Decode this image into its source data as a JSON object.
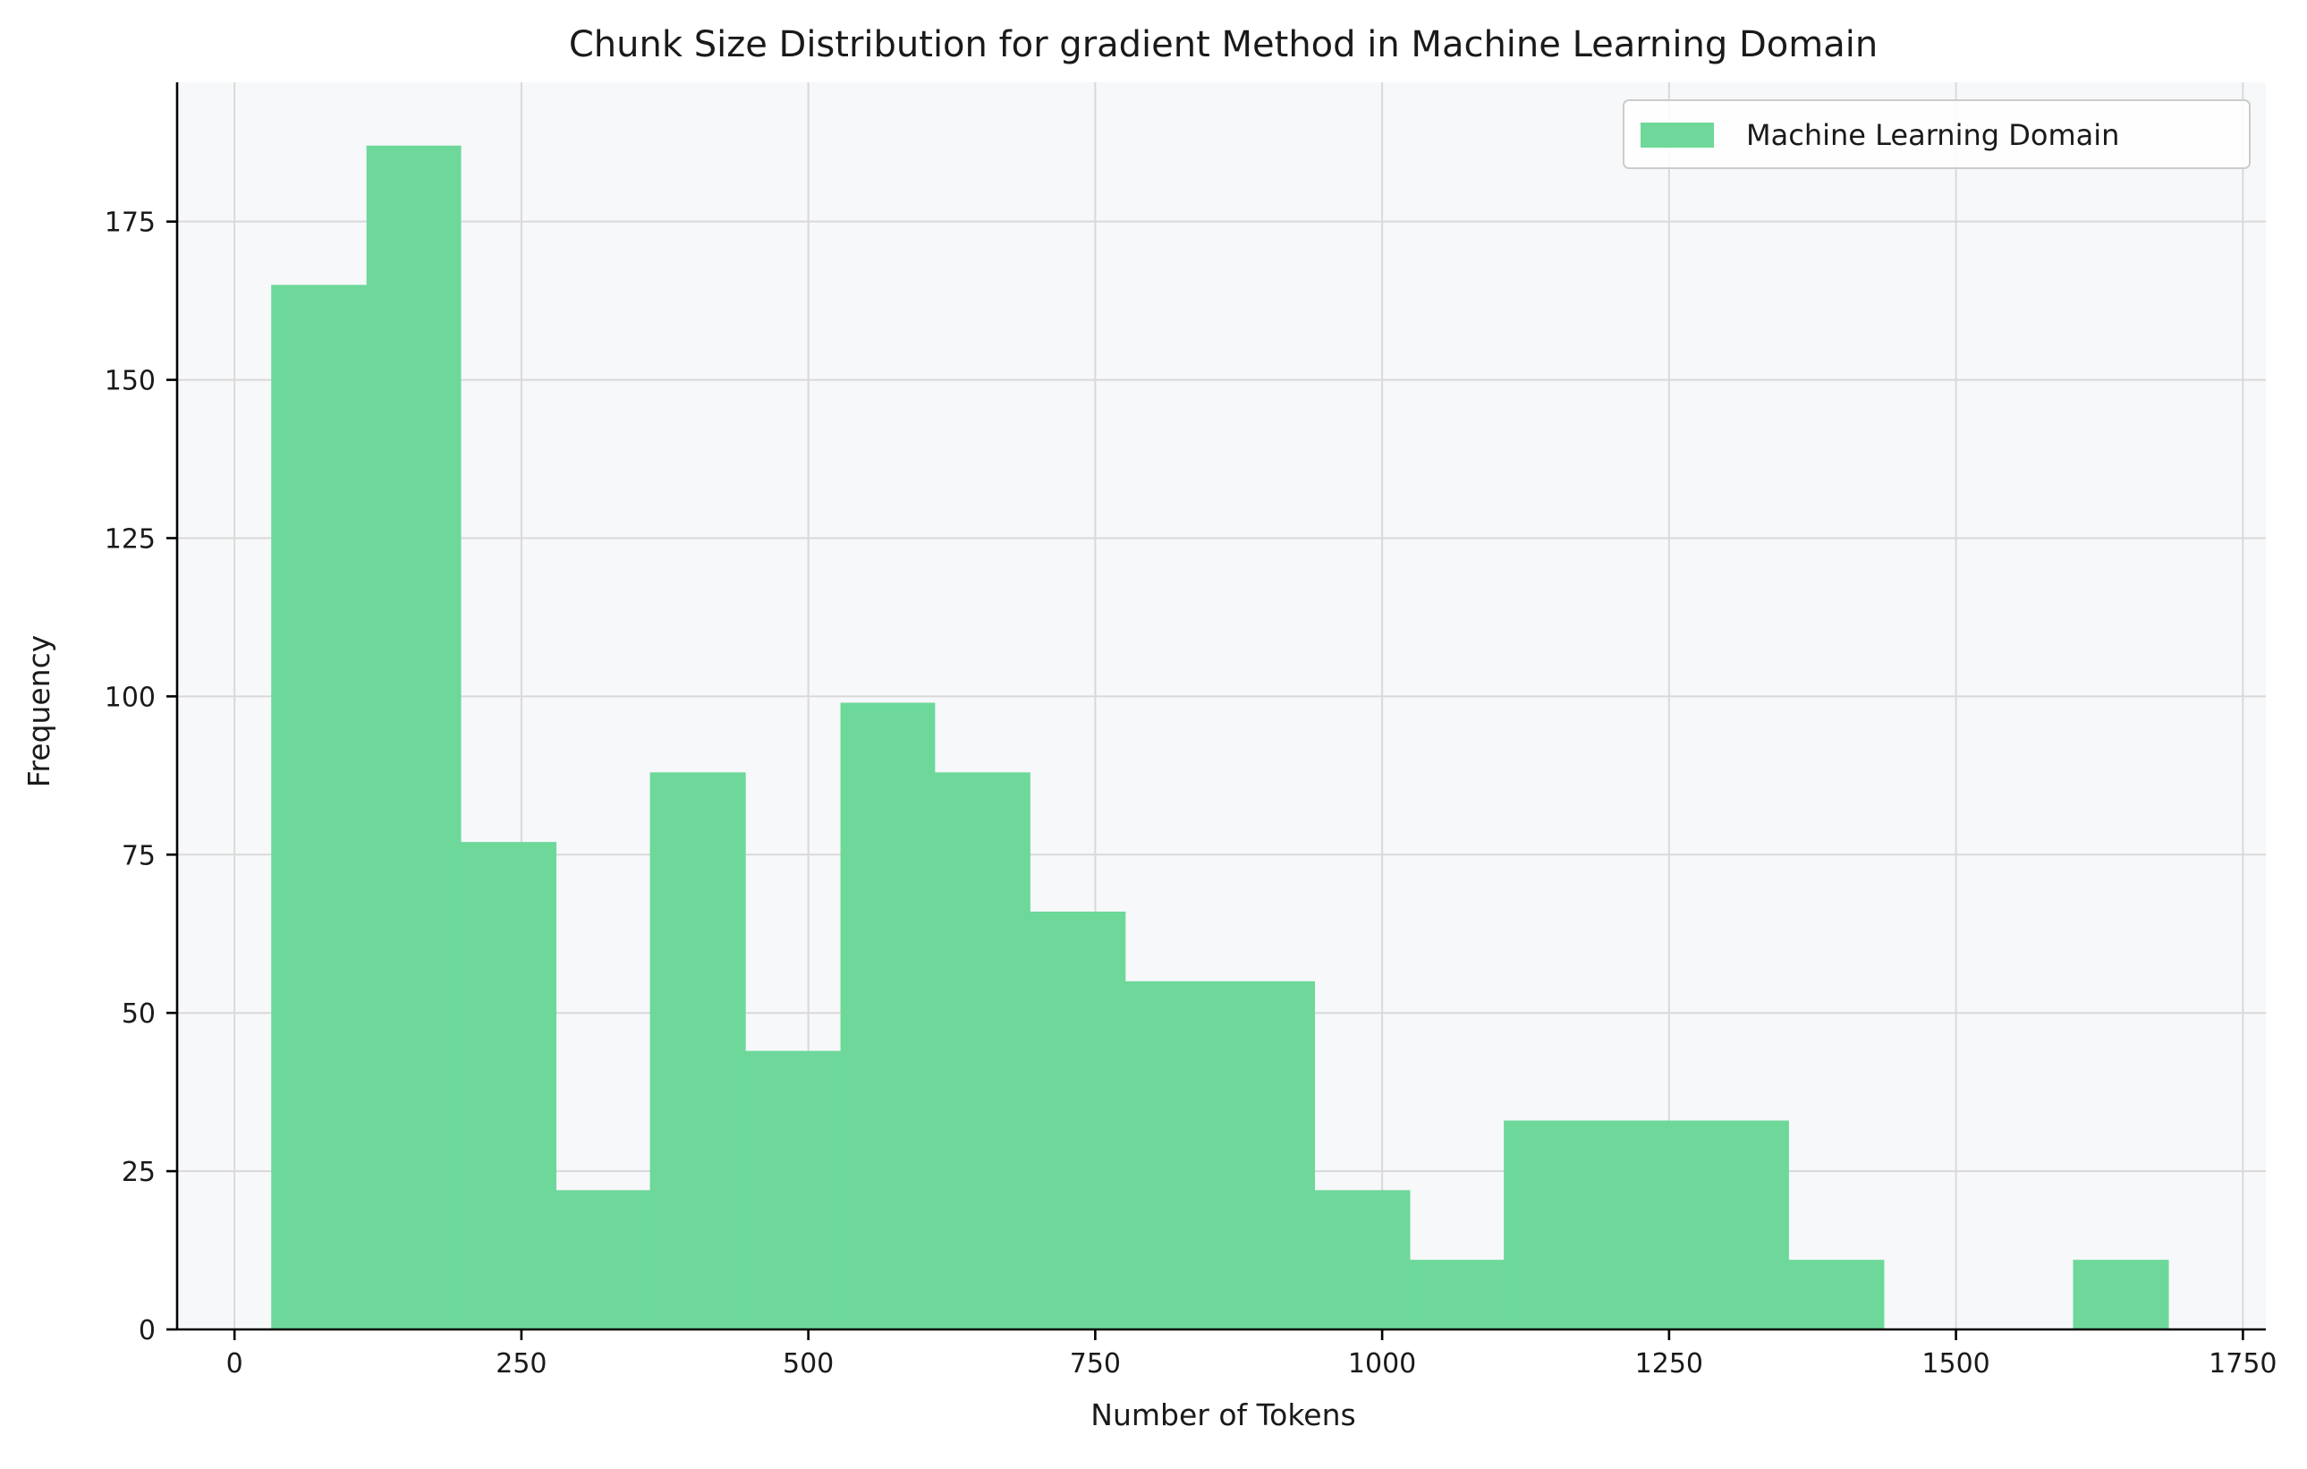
{
  "chart_data": {
    "type": "bar",
    "title": "Chunk Size Distribution for gradient Method in Machine Learning Domain",
    "xlabel": "Number of Tokens",
    "ylabel": "Frequency",
    "xlim": [
      -50,
      1770
    ],
    "ylim": [
      0,
      197
    ],
    "x_ticks": [
      0,
      250,
      500,
      750,
      1000,
      1250,
      1500,
      1750
    ],
    "y_ticks": [
      0,
      25,
      50,
      75,
      100,
      125,
      150,
      175
    ],
    "grid": true,
    "legend": {
      "position": "top-right",
      "entries": [
        "Machine Learning Domain"
      ]
    },
    "colors": {
      "bar": "#6dd89a",
      "plot_background": "#f7f8fa",
      "grid": "#d9d9d9"
    },
    "series": [
      {
        "name": "Machine Learning Domain",
        "bins": [
          {
            "start": 32,
            "end": 115,
            "count": 165
          },
          {
            "start": 115,
            "end": 197,
            "count": 187
          },
          {
            "start": 197,
            "end": 280,
            "count": 77
          },
          {
            "start": 280,
            "end": 362,
            "count": 22
          },
          {
            "start": 362,
            "end": 445,
            "count": 88
          },
          {
            "start": 445,
            "end": 528,
            "count": 44
          },
          {
            "start": 528,
            "end": 610,
            "count": 99
          },
          {
            "start": 610,
            "end": 693,
            "count": 88
          },
          {
            "start": 693,
            "end": 776,
            "count": 66
          },
          {
            "start": 776,
            "end": 858,
            "count": 55
          },
          {
            "start": 858,
            "end": 941,
            "count": 55
          },
          {
            "start": 941,
            "end": 1024,
            "count": 22
          },
          {
            "start": 1024,
            "end": 1106,
            "count": 11
          },
          {
            "start": 1106,
            "end": 1189,
            "count": 33
          },
          {
            "start": 1189,
            "end": 1272,
            "count": 33
          },
          {
            "start": 1272,
            "end": 1354,
            "count": 33
          },
          {
            "start": 1354,
            "end": 1437,
            "count": 11
          },
          {
            "start": 1437,
            "end": 1520,
            "count": 0
          },
          {
            "start": 1520,
            "end": 1602,
            "count": 0
          },
          {
            "start": 1602,
            "end": 1685,
            "count": 11
          }
        ]
      }
    ]
  }
}
